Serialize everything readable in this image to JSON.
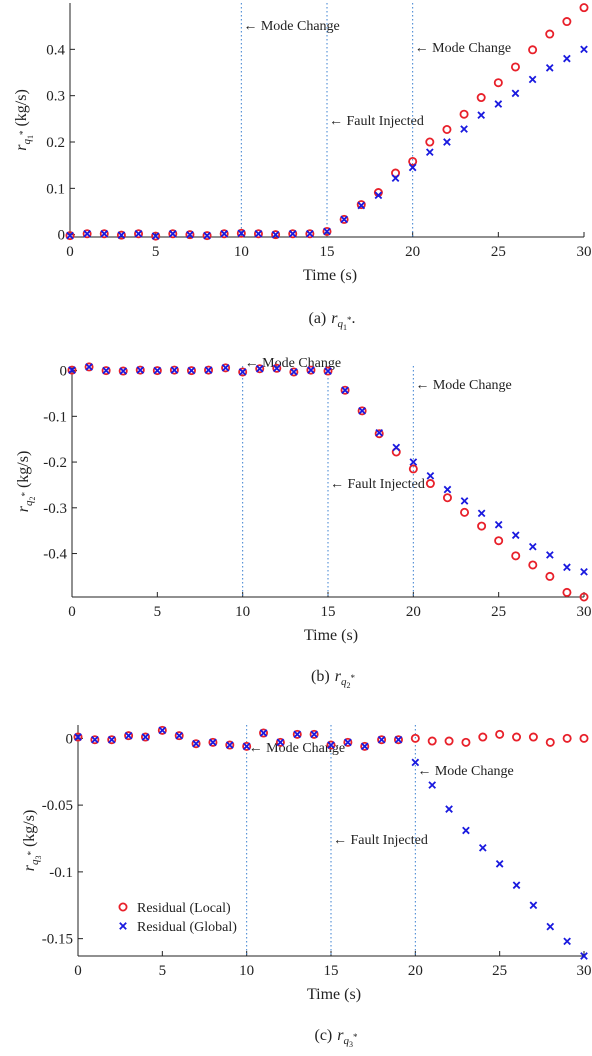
{
  "chart_data": [
    {
      "type": "scatter",
      "caption": "(a)",
      "ylabel_text": "(kg/s)",
      "xlabel": "Time (s)",
      "xlim": [
        0,
        30
      ],
      "ylim": [
        -0.005,
        0.5
      ],
      "xticks": [
        "0",
        "5",
        "10",
        "15",
        "20",
        "25",
        "30"
      ],
      "yticks": [
        "0",
        "0.1",
        "0.2",
        "0.3",
        "0.4"
      ],
      "yticks_values": [
        0,
        0.1,
        0.2,
        0.3,
        0.4
      ],
      "annotations": [
        {
          "text": "← Mode Change",
          "x": 10
        },
        {
          "text": "← Fault Injected",
          "x": 15
        },
        {
          "text": "← Mode Change",
          "x": 20
        }
      ],
      "x": [
        0,
        1,
        2,
        3,
        4,
        5,
        6,
        7,
        8,
        9,
        10,
        11,
        12,
        13,
        14,
        15,
        16,
        17,
        18,
        19,
        20,
        21,
        22,
        23,
        24,
        25,
        26,
        27,
        28,
        29,
        30
      ],
      "series": [
        {
          "name": "Residual (Local)",
          "color": "#e8202a",
          "marker": "circle",
          "values": [
            -0.002,
            0.002,
            0.002,
            -0.001,
            0.002,
            -0.003,
            0.002,
            0.0,
            -0.002,
            0.002,
            0.003,
            0.002,
            0.0,
            0.002,
            0.002,
            0.007,
            0.033,
            0.065,
            0.091,
            0.133,
            0.158,
            0.2,
            0.227,
            0.26,
            0.296,
            0.328,
            0.362,
            0.399,
            0.433,
            0.46,
            0.49
          ]
        },
        {
          "name": "Residual (Global)",
          "color": "#1a1adf",
          "marker": "cross",
          "values": [
            -0.002,
            0.002,
            0.002,
            -0.001,
            0.002,
            -0.003,
            0.002,
            0.0,
            -0.002,
            0.002,
            0.003,
            0.002,
            0.0,
            0.002,
            0.002,
            0.007,
            0.033,
            0.063,
            0.085,
            0.122,
            0.145,
            0.178,
            0.2,
            0.228,
            0.258,
            0.282,
            0.305,
            0.335,
            0.36,
            0.38,
            0.4
          ]
        }
      ]
    },
    {
      "type": "scatter",
      "caption": "(b)",
      "ylabel_text": "(kg/s)",
      "xlabel": "Time (s)",
      "xlim": [
        0,
        30
      ],
      "ylim": [
        -0.495,
        0.01
      ],
      "xticks": [
        "0",
        "5",
        "10",
        "15",
        "20",
        "25",
        "30"
      ],
      "yticks": [
        "0",
        "-0.1",
        "-0.2",
        "-0.3",
        "-0.4"
      ],
      "yticks_values": [
        0,
        -0.1,
        -0.2,
        -0.3,
        -0.4
      ],
      "annotations": [
        {
          "text": "← Mode Change",
          "x": 10
        },
        {
          "text": "← Fault Injected",
          "x": 15
        },
        {
          "text": "← Mode Change",
          "x": 20
        }
      ],
      "x": [
        0,
        1,
        2,
        3,
        4,
        5,
        6,
        7,
        8,
        9,
        10,
        11,
        12,
        13,
        14,
        15,
        16,
        17,
        18,
        19,
        20,
        21,
        22,
        23,
        24,
        25,
        26,
        27,
        28,
        29,
        30
      ],
      "series": [
        {
          "name": "Residual (Local)",
          "color": "#e8202a",
          "marker": "circle",
          "values": [
            0.001,
            0.008,
            0.0,
            -0.001,
            0.001,
            0.0,
            0.001,
            0.0,
            0.001,
            0.006,
            -0.003,
            0.004,
            0.005,
            -0.003,
            0.001,
            -0.001,
            -0.043,
            -0.088,
            -0.138,
            -0.178,
            -0.215,
            -0.247,
            -0.278,
            -0.31,
            -0.34,
            -0.372,
            -0.405,
            -0.425,
            -0.45,
            -0.485,
            -0.495
          ]
        },
        {
          "name": "Residual (Global)",
          "color": "#1a1adf",
          "marker": "cross",
          "values": [
            0.001,
            0.008,
            0.0,
            -0.001,
            0.001,
            0.0,
            0.001,
            0.0,
            0.001,
            0.006,
            -0.003,
            0.004,
            0.005,
            -0.003,
            0.001,
            -0.001,
            -0.043,
            -0.088,
            -0.136,
            -0.168,
            -0.2,
            -0.23,
            -0.26,
            -0.285,
            -0.312,
            -0.337,
            -0.36,
            -0.385,
            -0.403,
            -0.43,
            -0.44
          ]
        }
      ]
    },
    {
      "type": "scatter",
      "caption": "(c)",
      "ylabel_text": "(kg/s)",
      "xlabel": "Time (s)",
      "xlim": [
        0,
        30
      ],
      "ylim": [
        -0.163,
        0.01
      ],
      "xticks": [
        "0",
        "5",
        "10",
        "15",
        "20",
        "25",
        "30"
      ],
      "yticks": [
        "0",
        "-0.05",
        "-0.1",
        "-0.15"
      ],
      "yticks_values": [
        0,
        -0.05,
        -0.1,
        -0.15
      ],
      "annotations": [
        {
          "text": "← Mode Change",
          "x": 10
        },
        {
          "text": "← Fault Injected",
          "x": 15
        },
        {
          "text": "← Mode Change",
          "x": 20
        }
      ],
      "legend": {
        "position": "bottom-left",
        "entries": [
          "Residual (Local)",
          "Residual (Global)"
        ]
      },
      "x": [
        0,
        1,
        2,
        3,
        4,
        5,
        6,
        7,
        8,
        9,
        10,
        11,
        12,
        13,
        14,
        15,
        16,
        17,
        18,
        19,
        20,
        21,
        22,
        23,
        24,
        25,
        26,
        27,
        28,
        29,
        30
      ],
      "series": [
        {
          "name": "Residual (Local)",
          "color": "#e8202a",
          "marker": "circle",
          "values": [
            0.001,
            -0.001,
            -0.001,
            0.002,
            0.001,
            0.006,
            0.002,
            -0.004,
            -0.003,
            -0.005,
            -0.006,
            0.004,
            -0.003,
            0.003,
            0.003,
            -0.005,
            -0.003,
            -0.006,
            -0.001,
            -0.001,
            0.0,
            -0.002,
            -0.002,
            -0.003,
            0.001,
            0.003,
            0.001,
            0.001,
            -0.003,
            0.0,
            0.0
          ]
        },
        {
          "name": "Residual (Global)",
          "color": "#1a1adf",
          "marker": "cross",
          "values": [
            0.001,
            -0.001,
            -0.001,
            0.002,
            0.001,
            0.006,
            0.002,
            -0.004,
            -0.003,
            -0.005,
            -0.006,
            0.004,
            -0.003,
            0.003,
            0.003,
            -0.005,
            -0.003,
            -0.006,
            -0.001,
            -0.001,
            -0.018,
            -0.035,
            -0.053,
            -0.069,
            -0.082,
            -0.094,
            -0.11,
            -0.125,
            -0.141,
            -0.152,
            -0.163
          ]
        }
      ]
    }
  ]
}
